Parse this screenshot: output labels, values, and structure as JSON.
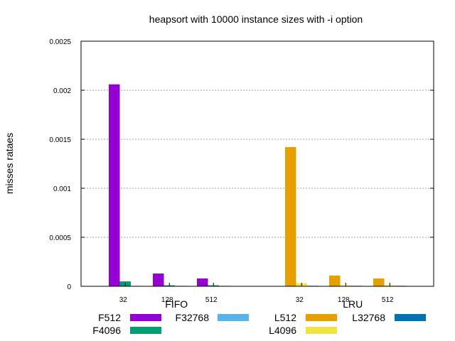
{
  "chart_data": {
    "type": "bar",
    "title": "heapsort with 10000 instance sizes with -i option",
    "xlabel": "",
    "ylabel": "misses rataes",
    "ylim": [
      0,
      0.0025
    ],
    "yticks": [
      "0",
      "0.0005",
      "0.001",
      "0.0015",
      "0.002",
      "0.0025"
    ],
    "grid": true,
    "legend_position": "bottom",
    "groups": [
      {
        "label": "FIFO",
        "categories": [
          "32",
          "128",
          "512"
        ],
        "series": [
          {
            "name": "F512",
            "color": "#9400d3",
            "values": [
              0.00206,
              0.00013,
              8e-05
            ]
          },
          {
            "name": "F4096",
            "color": "#009e73",
            "values": [
              5e-05,
              1e-05,
              1e-05
            ]
          },
          {
            "name": "F32768",
            "color": "#56b4e9",
            "values": [
              5e-06,
              5e-06,
              5e-06
            ]
          }
        ]
      },
      {
        "label": "LRU",
        "categories": [
          "32",
          "128",
          "512"
        ],
        "series": [
          {
            "name": "L512",
            "color": "#e69f00",
            "values": [
              0.00142,
              0.00011,
              8e-05
            ]
          },
          {
            "name": "L4096",
            "color": "#f0e442",
            "values": [
              3e-05,
              1e-05,
              1e-05
            ]
          },
          {
            "name": "L32768",
            "color": "#0072b2",
            "values": [
              5e-06,
              5e-06,
              5e-06
            ]
          }
        ]
      }
    ],
    "legend": [
      {
        "name": "F512",
        "color": "#9400d3"
      },
      {
        "name": "F32768",
        "color": "#56b4e9"
      },
      {
        "name": "L512",
        "color": "#e69f00"
      },
      {
        "name": "L32768",
        "color": "#0072b2"
      },
      {
        "name": "F4096",
        "color": "#009e73"
      },
      {
        "name": "L4096",
        "color": "#f0e442"
      }
    ]
  }
}
